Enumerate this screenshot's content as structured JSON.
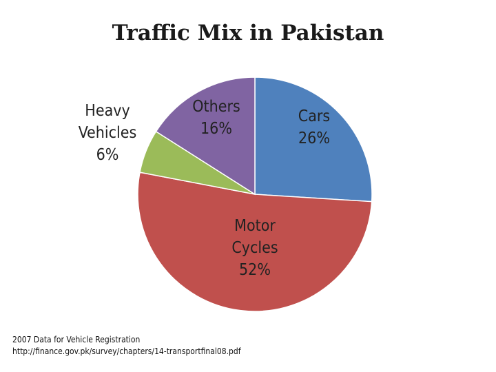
{
  "chart_data": {
    "type": "pie",
    "title": "Traffic Mix in Pakistan",
    "slices": [
      {
        "name": "Cars",
        "label_lines": [
          "Cars",
          "26%"
        ],
        "value": 26,
        "color": "#4f81bd"
      },
      {
        "name": "Motor Cycles",
        "label_lines": [
          "Motor",
          "Cycles",
          "52%"
        ],
        "value": 52,
        "color": "#c0504d"
      },
      {
        "name": "Heavy Vehicles",
        "label_lines": [
          "Heavy",
          "Vehicles",
          "6%"
        ],
        "value": 6,
        "color": "#9bbb59"
      },
      {
        "name": "Others",
        "label_lines": [
          "Others",
          "16%"
        ],
        "value": 16,
        "color": "#8064a2"
      }
    ]
  },
  "footer": {
    "line1": "2007 Data for Vehicle Registration",
    "line2": "http://finance.gov.pk/survey/chapters/14-transportfinal08.pdf"
  }
}
